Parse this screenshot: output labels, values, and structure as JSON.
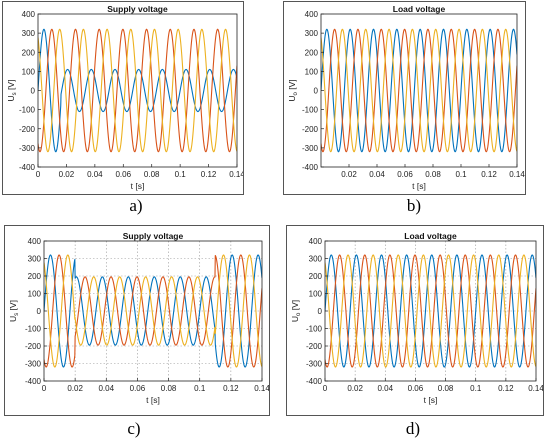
{
  "colors": {
    "phase_a": "#0072bd",
    "phase_b": "#d95319",
    "phase_c": "#edb120"
  },
  "captions": [
    "a)",
    "b)",
    "c)",
    "d)"
  ],
  "chart_data": [
    {
      "type": "line",
      "title": "Supply voltage",
      "xlabel": "t [s]",
      "ylabel": "U_s [V]",
      "ylabel_main": "U",
      "ylabel_sub": "s",
      "ylabel_unit": " [V]",
      "xlim": [
        0,
        0.14
      ],
      "ylim": [
        -400,
        400
      ],
      "xticks": [
        0,
        0.02,
        0.04,
        0.06,
        0.08,
        0.1,
        0.12,
        0.14
      ],
      "xtick_labels": [
        "0",
        "0.02",
        "0.04",
        "0.06",
        "0.08",
        "0.1",
        "0.12",
        "0.14"
      ],
      "yticks": [
        -400,
        -300,
        -200,
        -100,
        0,
        100,
        200,
        300,
        400
      ],
      "ytick_labels": [
        "-400",
        "-300",
        "-200",
        "-100",
        "0",
        "100",
        "200",
        "300",
        "400"
      ],
      "grid": false,
      "frequency_hz": 60,
      "series": [
        {
          "color": "#0072bd",
          "phase_deg": 0,
          "segments": [
            {
              "t0": 0,
              "t1": 0.016,
              "amplitude": 320
            },
            {
              "t0": 0.016,
              "t1": 0.14,
              "amplitude": 110
            }
          ]
        },
        {
          "color": "#d95319",
          "phase_deg": 120,
          "segments": [
            {
              "t0": 0,
              "t1": 0.14,
              "amplitude": 320
            }
          ]
        },
        {
          "color": "#edb120",
          "phase_deg": 240,
          "segments": [
            {
              "t0": 0,
              "t1": 0.14,
              "amplitude": 320
            }
          ]
        }
      ]
    },
    {
      "type": "line",
      "title": "Load voltage",
      "xlabel": "t [s]",
      "ylabel": "U_o [V]",
      "ylabel_main": "U",
      "ylabel_sub": "o",
      "ylabel_unit": " [V]",
      "xlim": [
        0,
        0.14
      ],
      "ylim": [
        -400,
        400
      ],
      "xticks": [
        0.02,
        0.04,
        0.06,
        0.08,
        0.1,
        0.12,
        0.14
      ],
      "xtick_labels": [
        "0.02",
        "0.04",
        "0.06",
        "0.08",
        "0.1",
        "0.12",
        "0.14"
      ],
      "yticks": [
        -400,
        -300,
        -200,
        -100,
        0,
        100,
        200,
        300,
        400
      ],
      "ytick_labels": [
        "-400",
        "-300",
        "-200",
        "-100",
        "0",
        "100",
        "200",
        "300",
        "400"
      ],
      "grid": false,
      "frequency_hz": 60,
      "series": [
        {
          "color": "#0072bd",
          "phase_deg": 0,
          "segments": [
            {
              "t0": 0,
              "t1": 0.14,
              "amplitude": 320
            }
          ]
        },
        {
          "color": "#d95319",
          "phase_deg": 120,
          "segments": [
            {
              "t0": 0,
              "t1": 0.14,
              "amplitude": 320
            }
          ]
        },
        {
          "color": "#edb120",
          "phase_deg": 240,
          "segments": [
            {
              "t0": 0,
              "t1": 0.14,
              "amplitude": 320
            }
          ]
        }
      ]
    },
    {
      "type": "line",
      "title": "Supply voltage",
      "xlabel": "t [s]",
      "ylabel": "U_s [V]",
      "ylabel_main": "U",
      "ylabel_sub": "s",
      "ylabel_unit": " [V]",
      "xlim": [
        0,
        0.14
      ],
      "ylim": [
        -400,
        400
      ],
      "xticks": [
        0,
        0.02,
        0.04,
        0.06,
        0.08,
        0.1,
        0.12,
        0.14
      ],
      "xtick_labels": [
        "0",
        "0.02",
        "0.04",
        "0.06",
        "0.08",
        "0.1",
        "0.12",
        "0.14"
      ],
      "yticks": [
        -400,
        -300,
        -200,
        -100,
        0,
        100,
        200,
        300,
        400
      ],
      "ytick_labels": [
        "-400",
        "-300",
        "-200",
        "-100",
        "0",
        "100",
        "200",
        "300",
        "400"
      ],
      "grid": true,
      "frequency_hz": 60,
      "series": [
        {
          "color": "#0072bd",
          "phase_deg": 0,
          "segments": [
            {
              "t0": 0,
              "t1": 0.02,
              "amplitude": 320
            },
            {
              "t0": 0.02,
              "t1": 0.11,
              "amplitude": 195
            },
            {
              "t0": 0.11,
              "t1": 0.14,
              "amplitude": 320
            }
          ]
        },
        {
          "color": "#d95319",
          "phase_deg": 120,
          "segments": [
            {
              "t0": 0,
              "t1": 0.02,
              "amplitude": 320
            },
            {
              "t0": 0.02,
              "t1": 0.11,
              "amplitude": 195
            },
            {
              "t0": 0.11,
              "t1": 0.14,
              "amplitude": 320
            }
          ]
        },
        {
          "color": "#edb120",
          "phase_deg": 240,
          "segments": [
            {
              "t0": 0,
              "t1": 0.02,
              "amplitude": 320
            },
            {
              "t0": 0.02,
              "t1": 0.11,
              "amplitude": 195
            },
            {
              "t0": 0.11,
              "t1": 0.14,
              "amplitude": 320
            }
          ]
        }
      ]
    },
    {
      "type": "line",
      "title": "Load voltage",
      "xlabel": "t [s]",
      "ylabel": "U_o [V]",
      "ylabel_main": "U",
      "ylabel_sub": "o",
      "ylabel_unit": " [V]",
      "xlim": [
        0,
        0.14
      ],
      "ylim": [
        -400,
        400
      ],
      "xticks": [
        0,
        0.02,
        0.04,
        0.06,
        0.08,
        0.1,
        0.12,
        0.14
      ],
      "xtick_labels": [
        "0",
        "0.02",
        "0.04",
        "0.06",
        "0.08",
        "0.1",
        "0.12",
        "0.14"
      ],
      "yticks": [
        -400,
        -300,
        -200,
        -100,
        0,
        100,
        200,
        300,
        400
      ],
      "ytick_labels": [
        "-400",
        "-300",
        "-200",
        "-100",
        "0",
        "100",
        "200",
        "300",
        "400"
      ],
      "grid": true,
      "frequency_hz": 60,
      "series": [
        {
          "color": "#0072bd",
          "phase_deg": 0,
          "segments": [
            {
              "t0": 0,
              "t1": 0.14,
              "amplitude": 320
            }
          ]
        },
        {
          "color": "#d95319",
          "phase_deg": 120,
          "segments": [
            {
              "t0": 0,
              "t1": 0.14,
              "amplitude": 320
            }
          ]
        },
        {
          "color": "#edb120",
          "phase_deg": 240,
          "segments": [
            {
              "t0": 0,
              "t1": 0.14,
              "amplitude": 320
            }
          ]
        }
      ]
    }
  ]
}
